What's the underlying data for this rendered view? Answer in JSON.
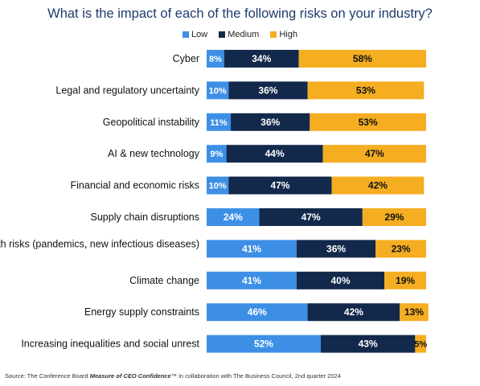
{
  "chart_data": {
    "type": "bar",
    "orientation": "horizontal",
    "stacked": true,
    "title": "What is the impact of each of the following risks on your industry?",
    "categories": [
      "Cyber",
      "Legal and regulatory uncertainty",
      "Geopolitical instability",
      "AI & new technology",
      "Financial and economic risks",
      "Supply chain disruptions",
      "Health risks (pandemics, new infectious diseases)",
      "Climate change",
      "Energy supply constraints",
      "Increasing inequalities and social unrest"
    ],
    "series": [
      {
        "name": "Low",
        "color": "#3d8fe6",
        "values": [
          8,
          10,
          11,
          9,
          10,
          24,
          41,
          41,
          46,
          52
        ]
      },
      {
        "name": "Medium",
        "color": "#13294b",
        "values": [
          34,
          36,
          36,
          44,
          47,
          47,
          36,
          40,
          42,
          43
        ]
      },
      {
        "name": "High",
        "color": "#f5ad22",
        "values": [
          58,
          53,
          53,
          47,
          42,
          29,
          23,
          19,
          13,
          5
        ]
      }
    ],
    "value_suffix": "%",
    "legend_position": "top",
    "grid": false
  },
  "source": {
    "prefix": "Source: The Conference Board ",
    "italic": "Measure of CEO Confidence",
    "suffix": "™ in collaboration with The Business Council, 2nd quarter 2024"
  }
}
